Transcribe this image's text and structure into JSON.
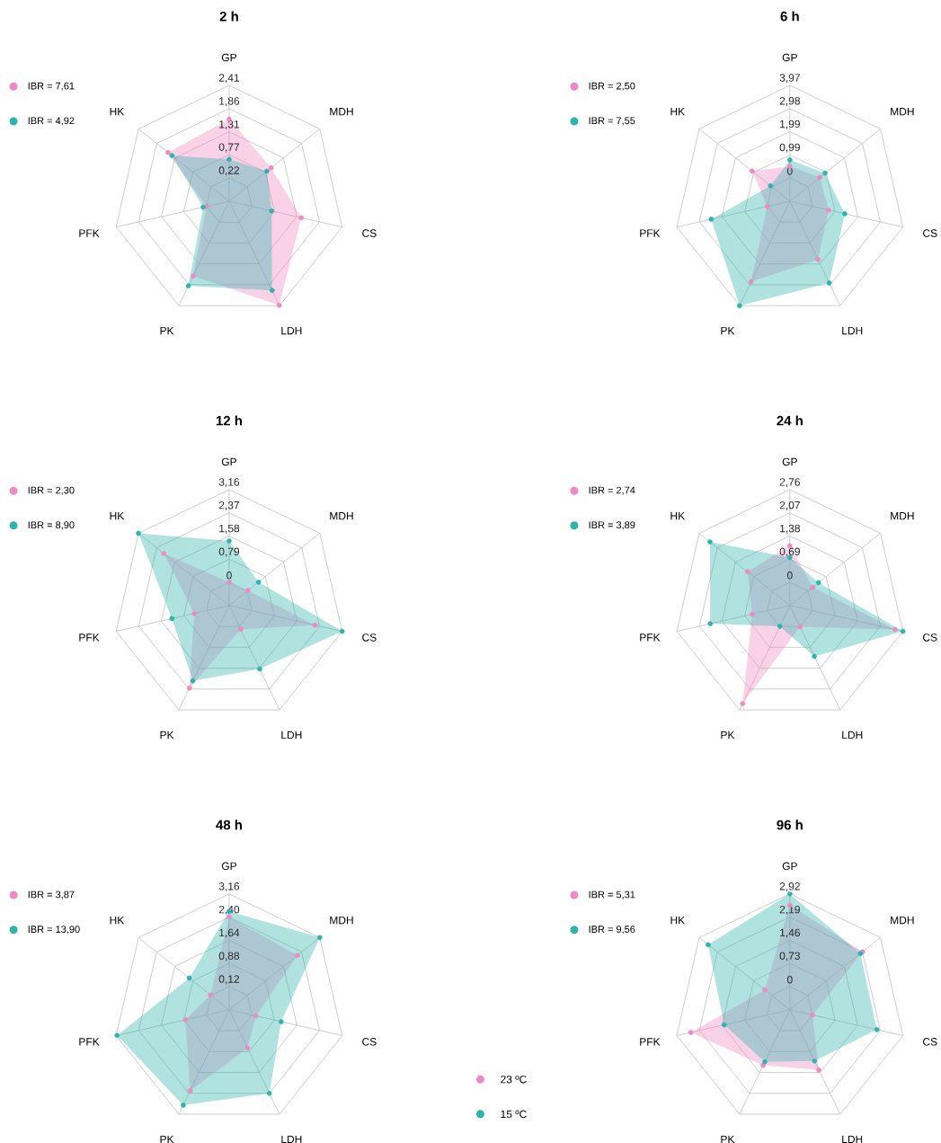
{
  "chart_data": [
    {
      "type": "radar",
      "title": "2 h",
      "categories": [
        "GP",
        "MDH",
        "CS",
        "LDH",
        "PK",
        "PFK",
        "HK"
      ],
      "ylim": [
        -0.33,
        2.41
      ],
      "yticks": [
        {
          "value": 0.22,
          "label": "0,22"
        },
        {
          "value": 0.77,
          "label": "0,77"
        },
        {
          "value": 1.31,
          "label": "1,31"
        },
        {
          "value": 1.86,
          "label": "1,86"
        },
        {
          "value": 2.41,
          "label": "2,41"
        }
      ],
      "grid": true,
      "legend": "top left",
      "marker": "circle",
      "series": [
        {
          "name": "IBR = 7,61",
          "color": "#ee8ac3",
          "values": [
            1.61,
            0.94,
            1.42,
            2.4,
            1.63,
            0.22,
            1.52
          ]
        },
        {
          "name": "IBR = 4,92",
          "color": "#2fb3ad",
          "values": [
            0.66,
            0.81,
            0.7,
            2.01,
            1.89,
            0.3,
            1.4
          ]
        }
      ]
    },
    {
      "type": "radar",
      "title": "6 h",
      "categories": [
        "GP",
        "MDH",
        "CS",
        "LDH",
        "PK",
        "PFK",
        "HK"
      ],
      "ylim": [
        -0.99,
        3.97
      ],
      "yticks": [
        0,
        {
          "value": 0.99,
          "label": "0,99"
        },
        {
          "value": 1.99,
          "label": "1,99"
        },
        {
          "value": 2.98,
          "label": "2,98"
        },
        {
          "value": 3.97,
          "label": "3,97"
        }
      ],
      "grid": true,
      "legend": "top left",
      "marker": "circle",
      "series": [
        {
          "name": "IBR = 2,50",
          "color": "#ee8ac3",
          "values": [
            0.5,
            0.65,
            0.71,
            1.78,
            2.83,
            0.0,
            1.08
          ]
        },
        {
          "name": "IBR = 7,55",
          "color": "#2fb3ad",
          "values": [
            0.78,
            0.94,
            1.42,
            2.89,
            3.97,
            2.46,
            0.07
          ]
        }
      ]
    },
    {
      "type": "radar",
      "title": "12 h",
      "categories": [
        "GP",
        "MDH",
        "CS",
        "LDH",
        "PK",
        "PFK",
        "HK"
      ],
      "ylim": [
        -0.79,
        3.16
      ],
      "yticks": [
        0,
        {
          "value": 0.79,
          "label": "0,79"
        },
        {
          "value": 1.58,
          "label": "1,58"
        },
        {
          "value": 2.37,
          "label": "2,37"
        },
        {
          "value": 3.16,
          "label": "3,16"
        }
      ],
      "grid": true,
      "legend": "top left",
      "marker": "circle",
      "series": [
        {
          "name": "IBR = 2,30",
          "color": "#ee8ac3",
          "values": [
            0.0,
            0.03,
            2.21,
            0.11,
            2.33,
            0.43,
            2.06
          ]
        },
        {
          "name": "IBR = 8,90",
          "color": "#2fb3ad",
          "values": [
            1.41,
            0.49,
            3.16,
            1.61,
            2.06,
            1.21,
            3.16
          ]
        }
      ]
    },
    {
      "type": "radar",
      "title": "24 h",
      "categories": [
        "GP",
        "MDH",
        "CS",
        "LDH",
        "PK",
        "PFK",
        "HK"
      ],
      "ylim": [
        -0.69,
        2.76
      ],
      "yticks": [
        0,
        {
          "value": 0.69,
          "label": "0,69"
        },
        {
          "value": 1.38,
          "label": "1,38"
        },
        {
          "value": 2.07,
          "label": "2,07"
        },
        {
          "value": 2.76,
          "label": "2,76"
        }
      ],
      "grid": true,
      "legend": "top left",
      "marker": "circle",
      "series": [
        {
          "name": "IBR = 2,74",
          "color": "#ee8ac3",
          "values": [
            1.09,
            0.18,
            2.52,
            0.01,
            2.55,
            0.46,
            0.92
          ]
        },
        {
          "name": "IBR = 3,89",
          "color": "#2fb3ad",
          "values": [
            0.74,
            0.4,
            2.76,
            0.99,
            0.0,
            1.74,
            2.35
          ]
        }
      ]
    },
    {
      "type": "radar",
      "title": "48 h",
      "categories": [
        "GP",
        "MDH",
        "CS",
        "LDH",
        "PK",
        "PFK",
        "HK"
      ],
      "ylim": [
        -0.64,
        3.16
      ],
      "yticks": [
        {
          "value": 0.12,
          "label": "0,12"
        },
        {
          "value": 0.88,
          "label": "0,88"
        },
        {
          "value": 1.64,
          "label": "1,64"
        },
        {
          "value": 2.4,
          "label": "2,40"
        },
        {
          "value": 3.16,
          "label": "3,16"
        }
      ],
      "grid": true,
      "legend": "top left",
      "marker": "circle",
      "series": [
        {
          "name": "IBR = 3,87",
          "color": "#ee8ac3",
          "values": [
            2.4,
            2.22,
            0.26,
            0.75,
            2.3,
            0.83,
            0.14
          ]
        },
        {
          "name": "IBR = 13,90",
          "color": "#2fb3ad",
          "values": [
            2.59,
            3.16,
            1.11,
            2.4,
            2.83,
            3.13,
            1.03
          ]
        }
      ]
    },
    {
      "type": "radar",
      "title": "96 h",
      "categories": [
        "GP",
        "MDH",
        "CS",
        "LDH",
        "PK",
        "PFK",
        "HK"
      ],
      "ylim": [
        -0.73,
        2.92
      ],
      "yticks": [
        0,
        {
          "value": 0.73,
          "label": "0,73"
        },
        {
          "value": 1.46,
          "label": "1,46"
        },
        {
          "value": 2.19,
          "label": "2,19"
        },
        {
          "value": 2.92,
          "label": "2,92"
        }
      ],
      "grid": true,
      "legend": "top left",
      "marker": "circle",
      "annotations": [
        "23 ºC",
        "15 ºC"
      ],
      "series": [
        {
          "name": "IBR = 5,31",
          "color": "#ee8ac3",
          "values": [
            2.56,
            2.2,
            0.0,
            1.37,
            1.21,
            2.47,
            0.28
          ]
        },
        {
          "name": "IBR = 9,56",
          "color": "#2fb3ad",
          "values": [
            2.92,
            2.11,
            2.08,
            1.06,
            1.09,
            1.39,
            2.56
          ]
        }
      ]
    }
  ]
}
